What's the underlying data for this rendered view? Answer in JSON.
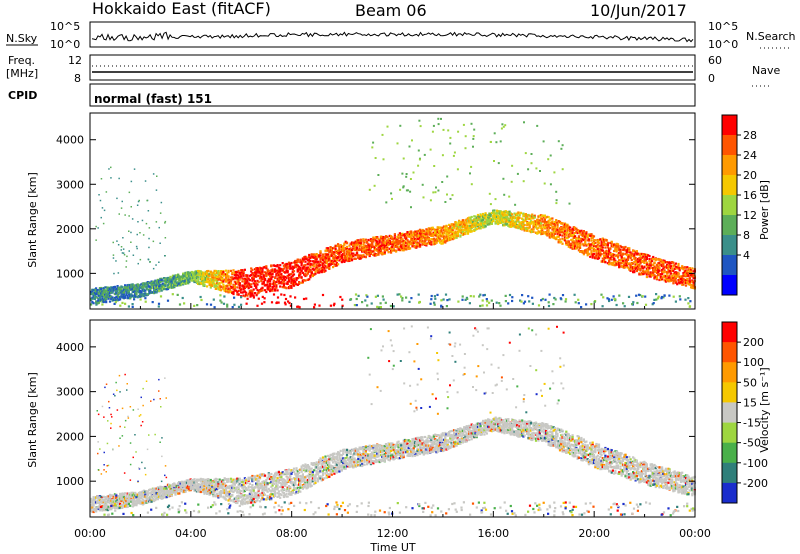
{
  "header": {
    "radar": "Hokkaido East (fitACF)",
    "beam": "Beam 06",
    "date": "10/Jun/2017"
  },
  "top_panel": {
    "nsky_label": "N.Sky",
    "freq_label": "Freq.",
    "freq_unit": "[MHz]",
    "cpid_label": "CPID",
    "nsky_ticks": [
      "10^5",
      "10^0"
    ],
    "freq_ticks": [
      "12",
      "8"
    ],
    "nsearch_label": "N.Search",
    "nsearch_ticks": [
      "10^5",
      "10^0"
    ],
    "nave_label": "Nave",
    "nave_ticks": [
      "60",
      "0"
    ],
    "cpid_value": "normal (fast) 151"
  },
  "colors": {
    "power_scale": [
      "#0000ff",
      "#1f56c2",
      "#3a8f8a",
      "#5cae58",
      "#9ed640",
      "#f5c800",
      "#ff9a00",
      "#ff5500",
      "#ff0000"
    ],
    "velocity_scale": [
      "#1a2dcc",
      "#2f7f7a",
      "#49b04a",
      "#9ed640",
      "#c8c8c4",
      "#f5c800",
      "#ff9a00",
      "#ff5500",
      "#ff0000"
    ],
    "gray": "#c8c8c4"
  },
  "chart_data": [
    {
      "type": "heatmap",
      "title": "",
      "xlabel": "Time UT",
      "ylabel": "Slant Range [km]",
      "x_ticks": [
        "00:00",
        "04:00",
        "08:00",
        "12:00",
        "16:00",
        "20:00",
        "00:00"
      ],
      "y_ticks": [
        "1000",
        "2000",
        "3000",
        "4000"
      ],
      "ylim": [
        200,
        4600
      ],
      "colorbar_label": "Power [dB]",
      "colorbar_ticks": [
        "28",
        "24",
        "20",
        "16",
        "12",
        "8",
        "4"
      ],
      "bands": [
        {
          "t": 0,
          "r": 500,
          "w": 350,
          "lvl": 2
        },
        {
          "t": 2,
          "r": 650,
          "w": 300,
          "lvl": 2
        },
        {
          "t": 4,
          "r": 950,
          "w": 250,
          "lvl": 3
        },
        {
          "t": 6,
          "r": 800,
          "w": 600,
          "lvl": 8
        },
        {
          "t": 8,
          "r": 1000,
          "w": 600,
          "lvl": 8
        },
        {
          "t": 10,
          "r": 1500,
          "w": 450,
          "lvl": 7
        },
        {
          "t": 12,
          "r": 1700,
          "w": 400,
          "lvl": 7
        },
        {
          "t": 14,
          "r": 1900,
          "w": 400,
          "lvl": 6
        },
        {
          "t": 16,
          "r": 2300,
          "w": 300,
          "lvl": 4
        },
        {
          "t": 18,
          "r": 2100,
          "w": 450,
          "lvl": 6
        },
        {
          "t": 20,
          "r": 1600,
          "w": 550,
          "lvl": 7
        },
        {
          "t": 22,
          "r": 1200,
          "w": 500,
          "lvl": 7
        },
        {
          "t": 24,
          "r": 900,
          "w": 450,
          "lvl": 7
        }
      ]
    },
    {
      "type": "heatmap",
      "title": "",
      "xlabel": "Time UT",
      "ylabel": "Slant Range [km]",
      "x_ticks": [
        "00:00",
        "04:00",
        "08:00",
        "12:00",
        "16:00",
        "20:00",
        "00:00"
      ],
      "y_ticks": [
        "1000",
        "2000",
        "3000",
        "4000"
      ],
      "ylim": [
        200,
        4600
      ],
      "colorbar_label": "Velocity [m s⁻¹]",
      "colorbar_ticks": [
        "200",
        "100",
        "50",
        "15",
        "-15",
        "-50",
        "-100",
        "-200"
      ],
      "bands": [
        {
          "t": 0,
          "r": 500,
          "w": 350,
          "lvl": 4
        },
        {
          "t": 2,
          "r": 650,
          "w": 300,
          "lvl": 4
        },
        {
          "t": 4,
          "r": 950,
          "w": 250,
          "lvl": 4
        },
        {
          "t": 6,
          "r": 800,
          "w": 600,
          "lvl": 4
        },
        {
          "t": 8,
          "r": 1000,
          "w": 600,
          "lvl": 4
        },
        {
          "t": 10,
          "r": 1500,
          "w": 450,
          "lvl": 4
        },
        {
          "t": 12,
          "r": 1700,
          "w": 400,
          "lvl": 4
        },
        {
          "t": 14,
          "r": 1900,
          "w": 400,
          "lvl": 4
        },
        {
          "t": 16,
          "r": 2300,
          "w": 300,
          "lvl": 4
        },
        {
          "t": 18,
          "r": 2100,
          "w": 450,
          "lvl": 4
        },
        {
          "t": 20,
          "r": 1600,
          "w": 550,
          "lvl": 4
        },
        {
          "t": 22,
          "r": 1200,
          "w": 500,
          "lvl": 4
        },
        {
          "t": 24,
          "r": 900,
          "w": 450,
          "lvl": 4
        }
      ]
    }
  ]
}
